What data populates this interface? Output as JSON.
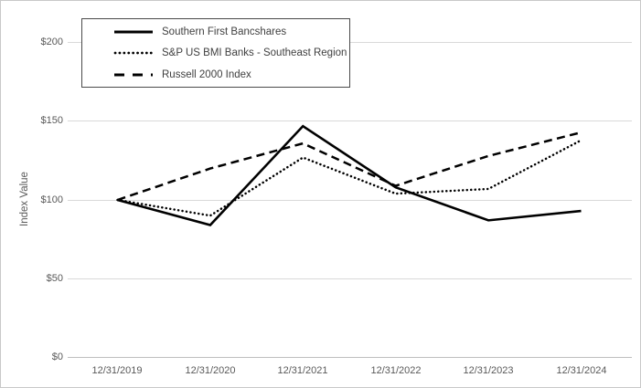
{
  "chart_data": {
    "type": "line",
    "title": "",
    "xlabel": "",
    "ylabel": "Index Value",
    "categories": [
      "12/31/2019",
      "12/31/2020",
      "12/31/2021",
      "12/31/2022",
      "12/31/2023",
      "12/31/2024"
    ],
    "ytick_labels": [
      "$200",
      "$150",
      "$100",
      "$50",
      "$0"
    ],
    "ylim": [
      0,
      200
    ],
    "grid": "horizontal",
    "gridline_color": "#d9d9d9",
    "line_color": "#000000",
    "text_color": "#595959",
    "legend_position": "top-left",
    "series": [
      {
        "name": "Southern First Bancshares",
        "style": "solid",
        "values": [
          100,
          84,
          147,
          108,
          87,
          93
        ]
      },
      {
        "name": "S&P US BMI Banks - Southeast Region",
        "style": "dotted",
        "values": [
          100,
          90,
          127,
          104,
          107,
          138
        ]
      },
      {
        "name": "Russell 2000 Index",
        "style": "dashed",
        "values": [
          100,
          120,
          136,
          109,
          128,
          143
        ]
      }
    ]
  }
}
